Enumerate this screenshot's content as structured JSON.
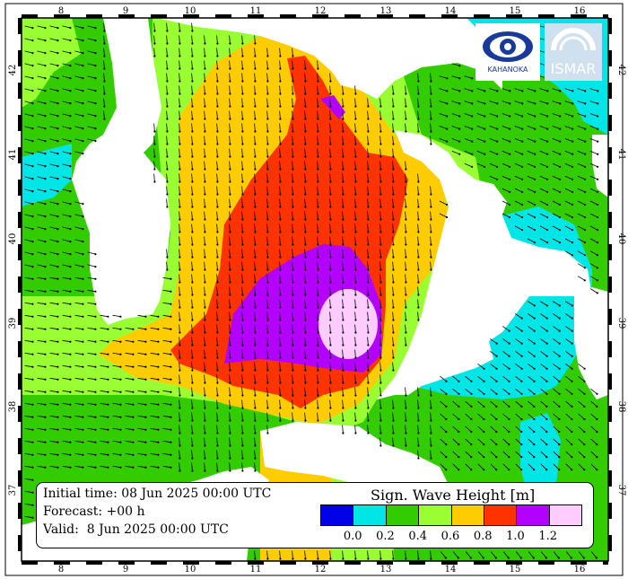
{
  "map": {
    "lon_ticks": [
      "8",
      "9",
      "10",
      "11",
      "12",
      "13",
      "14",
      "15",
      "16"
    ],
    "lat_ticks": [
      "42",
      "41",
      "40",
      "39",
      "38",
      "37"
    ],
    "colors": {
      "land": "#ffffff",
      "frame": "#000000",
      "arrow": "#000000"
    }
  },
  "info": {
    "initial_time": "Initial time: 08 Jun 2025 00:00 UTC",
    "forecast": "Forecast: +00 h",
    "valid": "Valid:  8 Jun 2025 00:00 UTC"
  },
  "legend": {
    "title": "Sign. Wave Height [m]",
    "colors": [
      "#0000e6",
      "#00e6e6",
      "#33cc00",
      "#99ff33",
      "#ffcc00",
      "#ff3300",
      "#b300ff",
      "#ffccff"
    ],
    "tick_labels": [
      "0.0",
      "0.2",
      "0.4",
      "0.6",
      "0.8",
      "1.0",
      "1.2"
    ]
  },
  "logos": {
    "left_text": "KAHANOKA",
    "right_text": "ISMAR"
  }
}
